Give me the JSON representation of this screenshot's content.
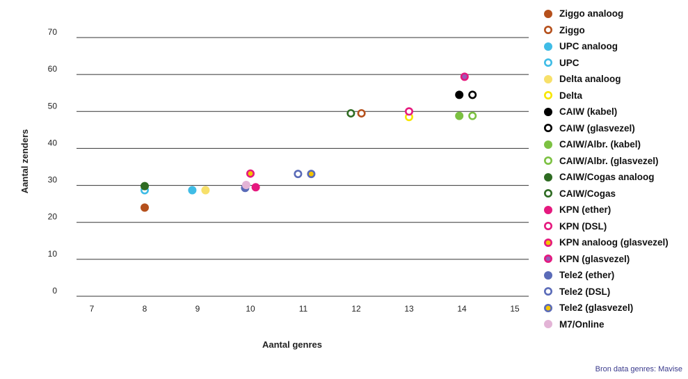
{
  "chart_data": {
    "type": "scatter",
    "title": "",
    "xlabel": "Aantal genres",
    "ylabel": "Aantal zenders",
    "xlim": [
      7,
      15
    ],
    "ylim": [
      0,
      70
    ],
    "xticks": [
      7,
      8,
      9,
      10,
      11,
      12,
      13,
      14,
      15
    ],
    "yticks": [
      0,
      10,
      20,
      30,
      40,
      50,
      60,
      70
    ],
    "grid": "horizontal",
    "legend_position": "right",
    "series": [
      {
        "name": "Ziggo analoog",
        "marker": "filled",
        "color": "#b5501c",
        "points": [
          [
            8,
            24
          ]
        ]
      },
      {
        "name": "Ziggo",
        "marker": "ring",
        "color": "#b5501c",
        "points": [
          [
            12.1,
            49.5
          ]
        ]
      },
      {
        "name": "UPC analoog",
        "marker": "filled",
        "color": "#3fbce6",
        "points": [
          [
            8.9,
            28.7
          ]
        ]
      },
      {
        "name": "UPC",
        "marker": "ring",
        "color": "#3fbce6",
        "points": [
          [
            8,
            28.7
          ]
        ]
      },
      {
        "name": "Delta analoog",
        "marker": "filled",
        "color": "#f7e06a",
        "points": [
          [
            9.15,
            28.7
          ]
        ]
      },
      {
        "name": "Delta",
        "marker": "ring",
        "color": "#f7e600",
        "points": [
          [
            13,
            48.5
          ]
        ]
      },
      {
        "name": "CAIW (kabel)",
        "marker": "filled",
        "color": "#000000",
        "points": [
          [
            13.95,
            54.5
          ]
        ]
      },
      {
        "name": "CAIW (glasvezel)",
        "marker": "ring",
        "color": "#000000",
        "points": [
          [
            14.2,
            54.5
          ]
        ]
      },
      {
        "name": "CAIW/Albr. (kabel)",
        "marker": "filled",
        "color": "#7cc142",
        "points": [
          [
            13.95,
            48.8
          ]
        ]
      },
      {
        "name": "CAIW/Albr. (glasvezel)",
        "marker": "ring",
        "color": "#7cc142",
        "points": [
          [
            14.2,
            48.8
          ]
        ]
      },
      {
        "name": "CAIW/Cogas analoog",
        "marker": "filled",
        "color": "#2e6b22",
        "points": [
          [
            8,
            29.8
          ]
        ]
      },
      {
        "name": "CAIW/Cogas",
        "marker": "ring",
        "color": "#2e6b22",
        "points": [
          [
            11.9,
            49.5
          ]
        ]
      },
      {
        "name": "KPN (ether)",
        "marker": "filled",
        "color": "#e5197e",
        "points": [
          [
            10.1,
            29.5
          ]
        ]
      },
      {
        "name": "KPN (DSL)",
        "marker": "ring",
        "color": "#e5197e",
        "points": [
          [
            13,
            50
          ]
        ]
      },
      {
        "name": "KPN analoog (glasvezel)",
        "marker": "ring-fill",
        "color": "#e5197e",
        "fill": "#f4c400",
        "points": [
          [
            10,
            33.2
          ]
        ]
      },
      {
        "name": "KPN (glasvezel)",
        "marker": "ring-fill",
        "color": "#e5197e",
        "fill": "#9b59b6",
        "points": [
          [
            14.05,
            59.4
          ]
        ]
      },
      {
        "name": "Tele2 (ether)",
        "marker": "filled",
        "color": "#5a6bb8",
        "points": [
          [
            9.9,
            29.3
          ]
        ]
      },
      {
        "name": "Tele2 (DSL)",
        "marker": "ring",
        "color": "#5a6bb8",
        "points": [
          [
            10.9,
            33.1
          ]
        ]
      },
      {
        "name": "Tele2 (glasvezel)",
        "marker": "ring-fill",
        "color": "#5a6bb8",
        "fill": "#f4c400",
        "points": [
          [
            11.15,
            33.1
          ]
        ]
      },
      {
        "name": "M7/Online",
        "marker": "filled",
        "color": "#e3b4d6",
        "points": [
          [
            9.92,
            30.1
          ]
        ]
      }
    ]
  },
  "source_note": "Bron data genres: Mavise"
}
